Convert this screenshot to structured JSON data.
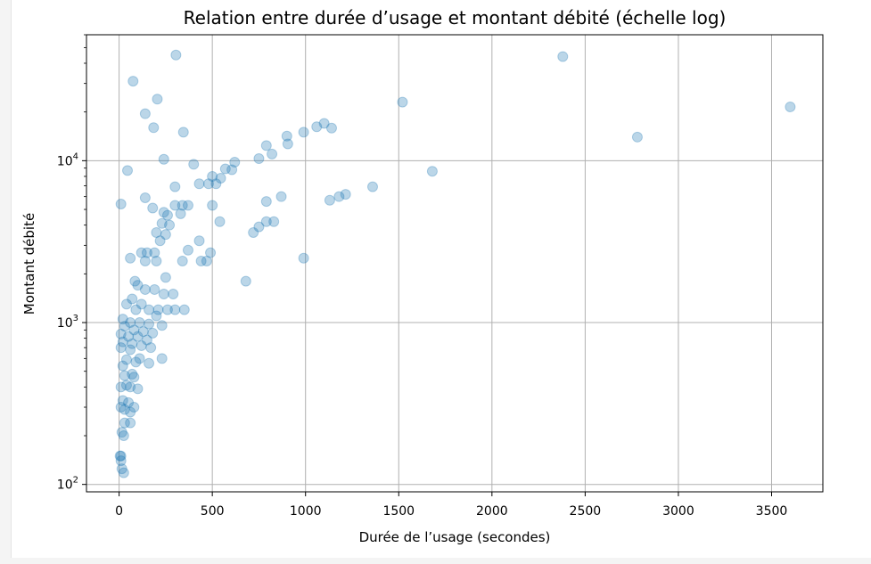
{
  "chart_data": {
    "type": "scatter",
    "title": "Relation entre durée d’usage et montant débité (échelle log)",
    "xlabel": "Durée de l’usage (secondes)",
    "ylabel": "Montant débité",
    "xlim": [
      -175,
      3775
    ],
    "ylim": [
      90,
      60000
    ],
    "yscale": "log",
    "grid": true,
    "marker_color": "#1f77b4",
    "marker_alpha": 0.3,
    "xticks": [
      {
        "value": 0,
        "label": "0"
      },
      {
        "value": 500,
        "label": "500"
      },
      {
        "value": 1000,
        "label": "1000"
      },
      {
        "value": 1500,
        "label": "1500"
      },
      {
        "value": 2000,
        "label": "2000"
      },
      {
        "value": 2500,
        "label": "2500"
      },
      {
        "value": 3000,
        "label": "3000"
      },
      {
        "value": 3500,
        "label": "3500"
      }
    ],
    "yticks": [
      {
        "value": 100,
        "base": "10",
        "exp": "2"
      },
      {
        "value": 1000,
        "base": "10",
        "exp": "3"
      },
      {
        "value": 10000,
        "base": "10",
        "exp": "4"
      }
    ],
    "points": [
      [
        305,
        45000
      ],
      [
        2380,
        44000
      ],
      [
        75,
        31000
      ],
      [
        205,
        24000
      ],
      [
        1520,
        23000
      ],
      [
        3600,
        21500
      ],
      [
        140,
        19500
      ],
      [
        1100,
        17000
      ],
      [
        1060,
        16200
      ],
      [
        1140,
        15900
      ],
      [
        185,
        16000
      ],
      [
        345,
        15000
      ],
      [
        990,
        15000
      ],
      [
        900,
        14200
      ],
      [
        2780,
        14000
      ],
      [
        905,
        12700
      ],
      [
        790,
        12400
      ],
      [
        820,
        11000
      ],
      [
        750,
        10300
      ],
      [
        240,
        10200
      ],
      [
        620,
        9800
      ],
      [
        400,
        9500
      ],
      [
        570,
        8900
      ],
      [
        605,
        8800
      ],
      [
        45,
        8700
      ],
      [
        1680,
        8600
      ],
      [
        500,
        8000
      ],
      [
        545,
        7800
      ],
      [
        430,
        7200
      ],
      [
        480,
        7200
      ],
      [
        520,
        7200
      ],
      [
        1360,
        6900
      ],
      [
        300,
        6900
      ],
      [
        1215,
        6200
      ],
      [
        1180,
        6000
      ],
      [
        870,
        6000
      ],
      [
        140,
        5900
      ],
      [
        1130,
        5700
      ],
      [
        790,
        5600
      ],
      [
        10,
        5400
      ],
      [
        500,
        5300
      ],
      [
        300,
        5300
      ],
      [
        340,
        5300
      ],
      [
        370,
        5300
      ],
      [
        180,
        5100
      ],
      [
        240,
        4800
      ],
      [
        330,
        4700
      ],
      [
        260,
        4600
      ],
      [
        540,
        4200
      ],
      [
        830,
        4200
      ],
      [
        790,
        4200
      ],
      [
        230,
        4100
      ],
      [
        270,
        4000
      ],
      [
        750,
        3900
      ],
      [
        720,
        3600
      ],
      [
        200,
        3600
      ],
      [
        250,
        3500
      ],
      [
        220,
        3200
      ],
      [
        430,
        3200
      ],
      [
        370,
        2800
      ],
      [
        150,
        2700
      ],
      [
        190,
        2700
      ],
      [
        120,
        2700
      ],
      [
        490,
        2700
      ],
      [
        440,
        2400
      ],
      [
        470,
        2400
      ],
      [
        340,
        2400
      ],
      [
        60,
        2500
      ],
      [
        200,
        2400
      ],
      [
        140,
        2400
      ],
      [
        990,
        2500
      ],
      [
        250,
        1900
      ],
      [
        680,
        1800
      ],
      [
        85,
        1800
      ],
      [
        100,
        1700
      ],
      [
        140,
        1600
      ],
      [
        190,
        1600
      ],
      [
        240,
        1500
      ],
      [
        290,
        1500
      ],
      [
        70,
        1400
      ],
      [
        120,
        1300
      ],
      [
        40,
        1300
      ],
      [
        90,
        1200
      ],
      [
        160,
        1200
      ],
      [
        210,
        1200
      ],
      [
        260,
        1200
      ],
      [
        300,
        1200
      ],
      [
        350,
        1200
      ],
      [
        200,
        1100
      ],
      [
        20,
        1050
      ],
      [
        60,
        1000
      ],
      [
        110,
        1000
      ],
      [
        160,
        980
      ],
      [
        230,
        960
      ],
      [
        30,
        950
      ],
      [
        80,
        900
      ],
      [
        130,
        880
      ],
      [
        180,
        860
      ],
      [
        10,
        850
      ],
      [
        50,
        820
      ],
      [
        100,
        820
      ],
      [
        150,
        780
      ],
      [
        20,
        760
      ],
      [
        70,
        740
      ],
      [
        120,
        720
      ],
      [
        170,
        700
      ],
      [
        10,
        700
      ],
      [
        60,
        680
      ],
      [
        110,
        600
      ],
      [
        230,
        600
      ],
      [
        40,
        590
      ],
      [
        90,
        570
      ],
      [
        160,
        560
      ],
      [
        20,
        540
      ],
      [
        70,
        480
      ],
      [
        30,
        470
      ],
      [
        80,
        460
      ],
      [
        40,
        410
      ],
      [
        10,
        400
      ],
      [
        60,
        400
      ],
      [
        100,
        390
      ],
      [
        20,
        330
      ],
      [
        50,
        320
      ],
      [
        80,
        300
      ],
      [
        10,
        300
      ],
      [
        30,
        290
      ],
      [
        60,
        280
      ],
      [
        30,
        240
      ],
      [
        60,
        240
      ],
      [
        15,
        210
      ],
      [
        25,
        200
      ],
      [
        5,
        150
      ],
      [
        10,
        150
      ],
      [
        10,
        140
      ],
      [
        15,
        125
      ],
      [
        25,
        118
      ]
    ]
  }
}
